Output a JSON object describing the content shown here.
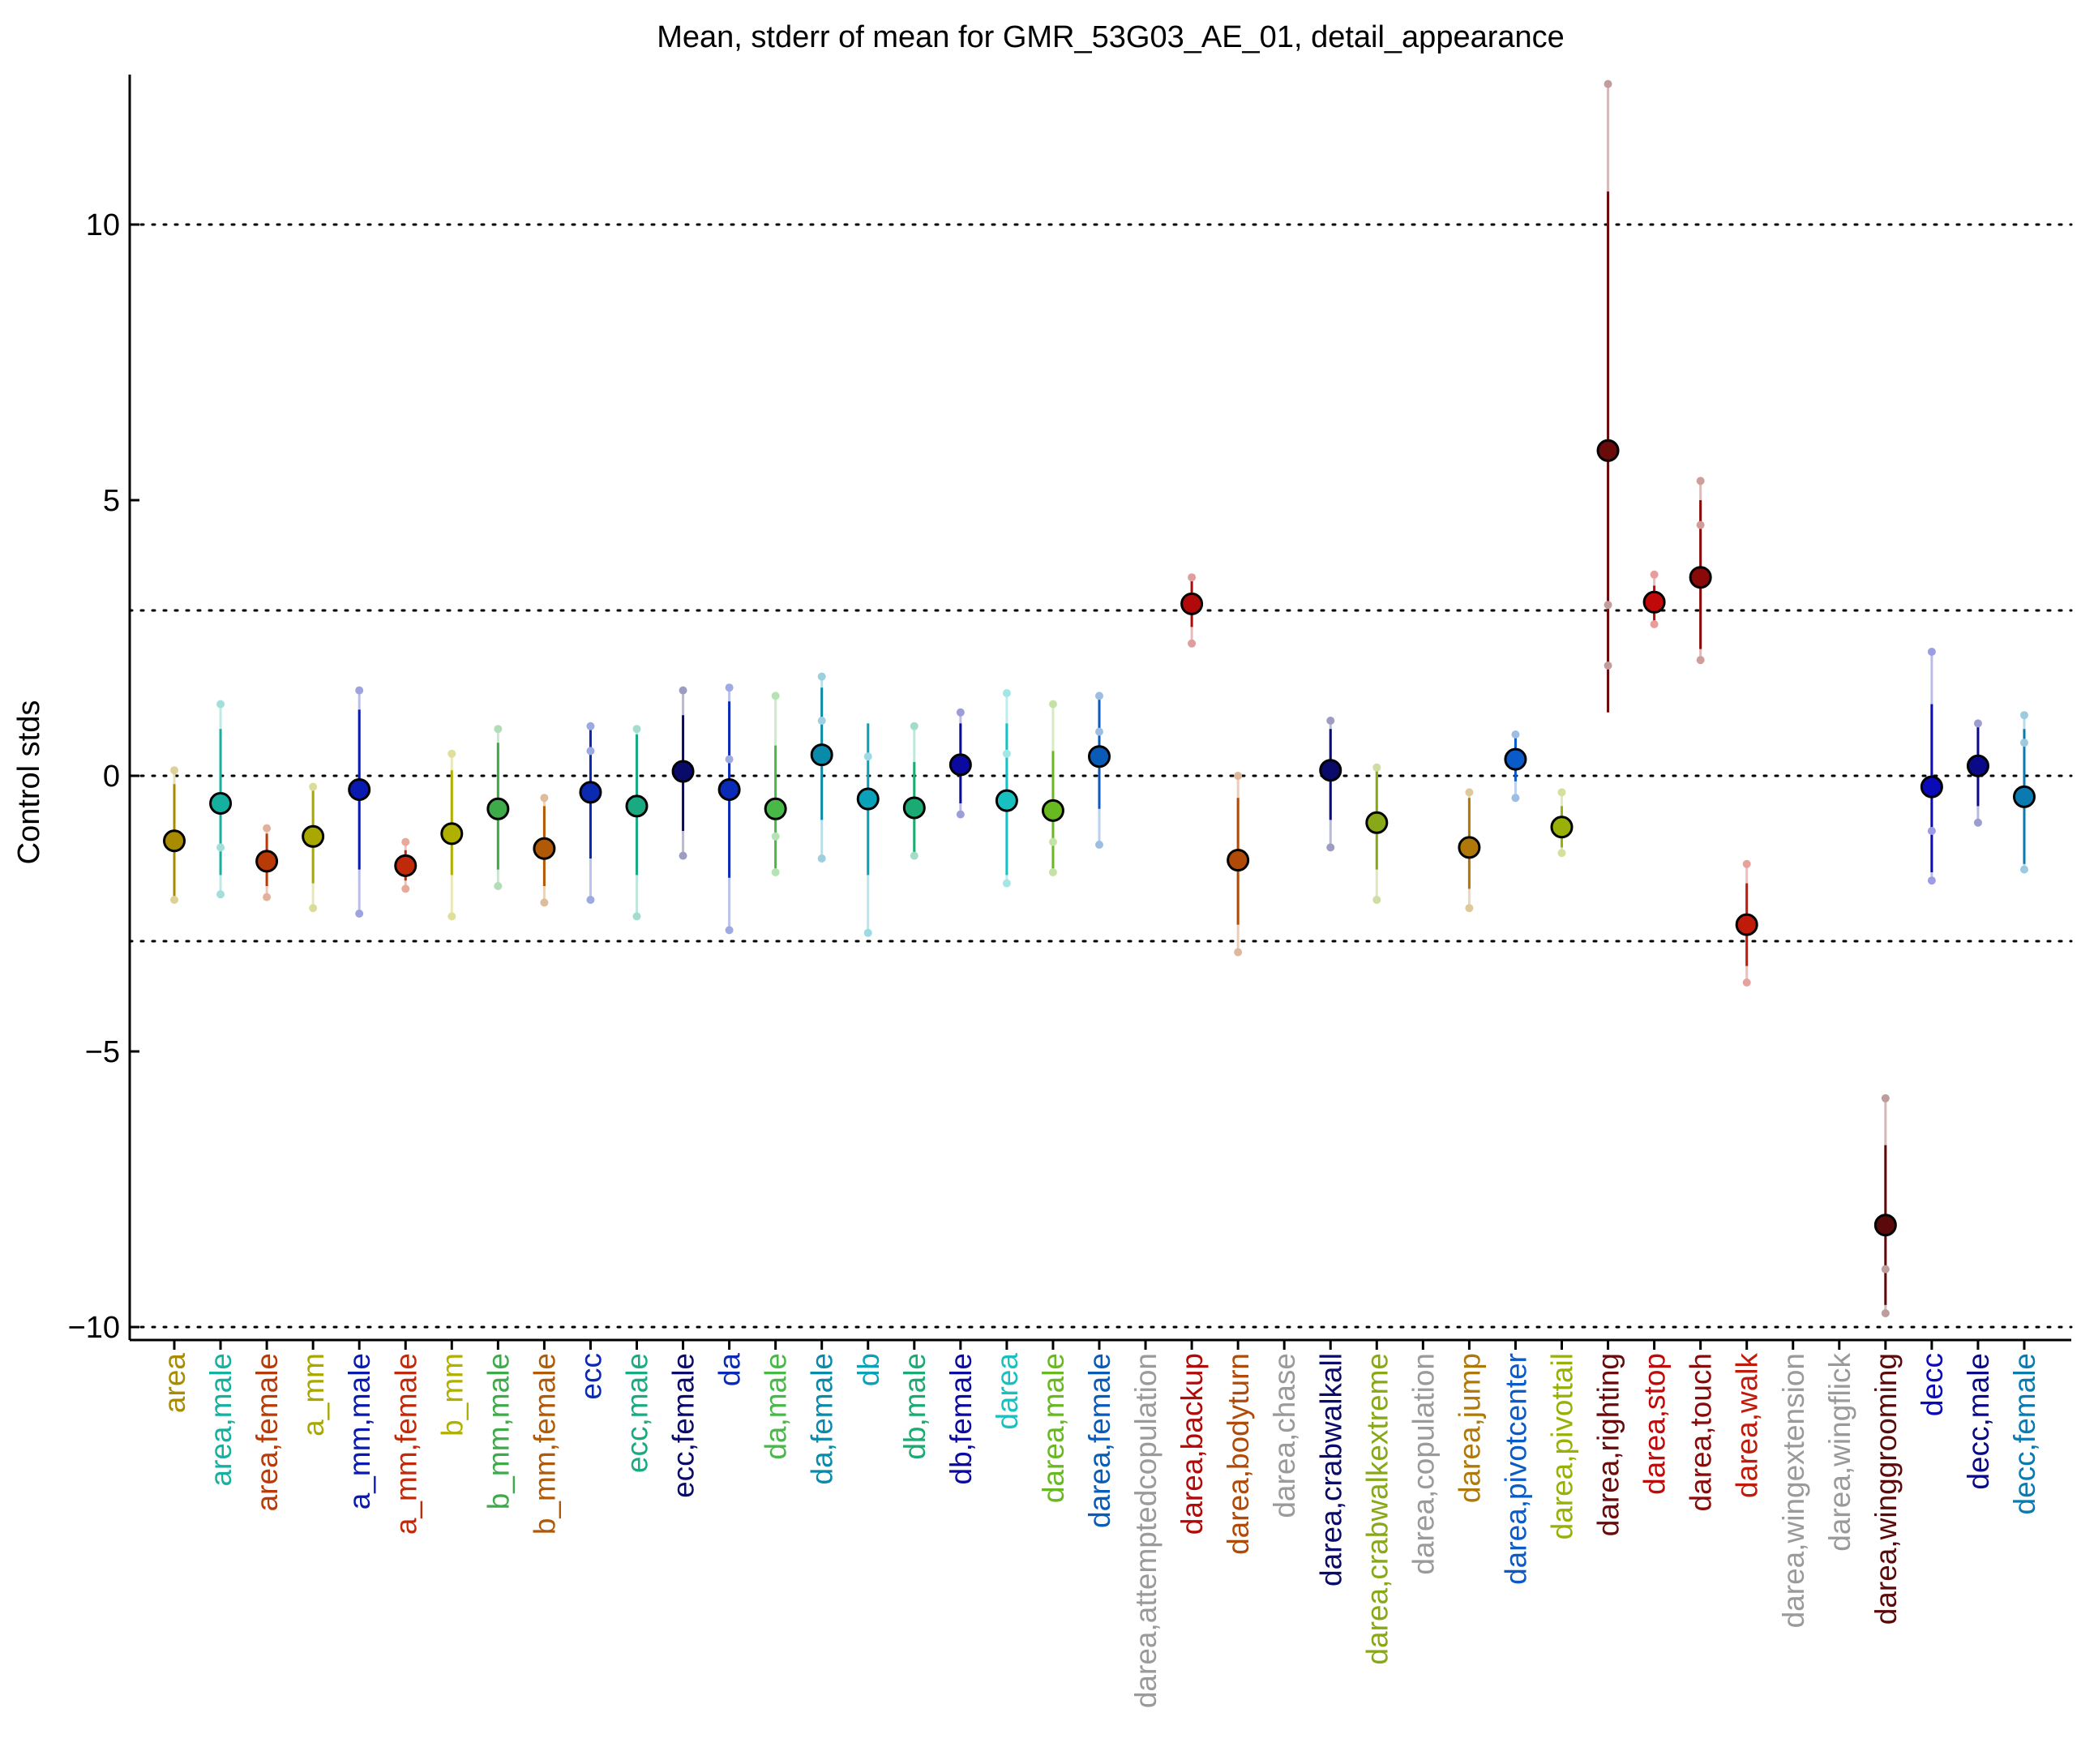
{
  "chart_data": {
    "type": "scatter",
    "title": "Mean, stderr of mean for GMR_53G03_AE_01, detail_appearance",
    "xlabel": "",
    "ylabel": "Control stds",
    "ylim": [
      -10.3,
      12.7
    ],
    "yticks": [
      -10,
      -5,
      0,
      5,
      10
    ],
    "ytick_labels": [
      "−10",
      "−5",
      "0",
      "5",
      "10"
    ],
    "reference_lines": [
      -10,
      -3,
      0,
      3,
      10
    ],
    "grid": false,
    "legend": "none",
    "categories": [
      {
        "label": "area",
        "color": "#a98b00",
        "mean": -1.18,
        "se_low": -2.2,
        "se_high": -0.15,
        "raw": [
          -2.25,
          0.1
        ]
      },
      {
        "label": "area,male",
        "color": "#16b0a0",
        "mean": -0.5,
        "se_low": -1.8,
        "se_high": 0.85,
        "raw": [
          -2.15,
          -1.3,
          1.3
        ]
      },
      {
        "label": "area,female",
        "color": "#b83a08",
        "mean": -1.55,
        "se_low": -2.0,
        "se_high": -1.05,
        "raw": [
          -2.2,
          -0.95
        ]
      },
      {
        "label": "a_mm",
        "color": "#a8a800",
        "mean": -1.1,
        "se_low": -1.95,
        "se_high": -0.25,
        "raw": [
          -2.4,
          -0.2
        ]
      },
      {
        "label": "a_mm,male",
        "color": "#0a1ab0",
        "mean": -0.25,
        "se_low": -1.7,
        "se_high": 1.2,
        "raw": [
          -2.5,
          1.55
        ]
      },
      {
        "label": "a_mm,female",
        "color": "#c02a0a",
        "mean": -1.63,
        "se_low": -1.9,
        "se_high": -1.35,
        "raw": [
          -2.05,
          -1.2
        ]
      },
      {
        "label": "b_mm",
        "color": "#b0b000",
        "mean": -1.05,
        "se_low": -1.8,
        "se_high": 0.1,
        "raw": [
          -2.55,
          0.4
        ]
      },
      {
        "label": "b_mm,male",
        "color": "#3eaa4a",
        "mean": -0.6,
        "se_low": -1.7,
        "se_high": 0.6,
        "raw": [
          -2.0,
          0.85
        ]
      },
      {
        "label": "b_mm,female",
        "color": "#b05a08",
        "mean": -1.32,
        "se_low": -2.0,
        "se_high": -0.55,
        "raw": [
          -2.3,
          -0.4
        ]
      },
      {
        "label": "ecc",
        "color": "#0a2ab0",
        "mean": -0.3,
        "se_low": -1.5,
        "se_high": 0.9,
        "raw": [
          -2.25,
          0.45,
          0.9
        ]
      },
      {
        "label": "ecc,male",
        "color": "#1aaa82",
        "mean": -0.55,
        "se_low": -1.8,
        "se_high": 0.75,
        "raw": [
          -2.55,
          0.85
        ]
      },
      {
        "label": "ecc,female",
        "color": "#0a0a6a",
        "mean": 0.08,
        "se_low": -1.0,
        "se_high": 1.1,
        "raw": [
          -1.45,
          1.55
        ]
      },
      {
        "label": "da",
        "color": "#0a2ab8",
        "mean": -0.25,
        "se_low": -1.85,
        "se_high": 1.35,
        "raw": [
          -2.8,
          0.3,
          1.6
        ]
      },
      {
        "label": "da,male",
        "color": "#48b848",
        "mean": -0.6,
        "se_low": -1.7,
        "se_high": 0.55,
        "raw": [
          -1.75,
          -1.1,
          1.45
        ]
      },
      {
        "label": "da,female",
        "color": "#0a8aaa",
        "mean": 0.38,
        "se_low": -0.8,
        "se_high": 1.6,
        "raw": [
          -1.5,
          1.0,
          1.8
        ]
      },
      {
        "label": "db",
        "color": "#0aa2b8",
        "mean": -0.42,
        "se_low": -1.8,
        "se_high": 0.95,
        "raw": [
          -2.85,
          0.35
        ]
      },
      {
        "label": "db,male",
        "color": "#1aaa72",
        "mean": -0.58,
        "se_low": -1.4,
        "se_high": 0.25,
        "raw": [
          -1.45,
          0.9
        ]
      },
      {
        "label": "db,female",
        "color": "#0a0aa0",
        "mean": 0.2,
        "se_low": -0.5,
        "se_high": 0.95,
        "raw": [
          -0.7,
          1.15
        ]
      },
      {
        "label": "darea",
        "color": "#18c0c0",
        "mean": -0.45,
        "se_low": -1.8,
        "se_high": 0.95,
        "raw": [
          -1.95,
          0.4,
          1.5
        ]
      },
      {
        "label": "darea,male",
        "color": "#68b820",
        "mean": -0.63,
        "se_low": -1.7,
        "se_high": 0.45,
        "raw": [
          -1.75,
          -1.2,
          1.3
        ]
      },
      {
        "label": "darea,female",
        "color": "#0a5ab8",
        "mean": 0.35,
        "se_low": -0.6,
        "se_high": 1.4,
        "raw": [
          -1.25,
          0.8,
          1.45
        ]
      },
      {
        "label": "darea,attemptedcopulation",
        "color": "#9a9a9a",
        "mean": null,
        "se_low": null,
        "se_high": null,
        "raw": []
      },
      {
        "label": "darea,backup",
        "color": "#b00a0a",
        "mean": 3.12,
        "se_low": 2.7,
        "se_high": 3.55,
        "raw": [
          2.4,
          3.6
        ]
      },
      {
        "label": "darea,bodyturn",
        "color": "#b04a08",
        "mean": -1.53,
        "se_low": -2.7,
        "se_high": -0.4,
        "raw": [
          -3.2,
          0.0
        ]
      },
      {
        "label": "darea,chase",
        "color": "#9a9a9a",
        "mean": null,
        "se_low": null,
        "se_high": null,
        "raw": []
      },
      {
        "label": "darea,crabwalkall",
        "color": "#0a0a6a",
        "mean": 0.1,
        "se_low": -0.8,
        "se_high": 0.85,
        "raw": [
          -1.3,
          1.0
        ]
      },
      {
        "label": "darea,crabwalkextreme",
        "color": "#88a818",
        "mean": -0.85,
        "se_low": -1.7,
        "se_high": 0.1,
        "raw": [
          -2.25,
          0.15
        ]
      },
      {
        "label": "darea,copulation",
        "color": "#9a9a9a",
        "mean": null,
        "se_low": null,
        "se_high": null,
        "raw": []
      },
      {
        "label": "darea,jump",
        "color": "#b07808",
        "mean": -1.3,
        "se_low": -2.05,
        "se_high": -0.4,
        "raw": [
          -2.4,
          -0.3
        ]
      },
      {
        "label": "darea,pivotcenter",
        "color": "#0a5ac8",
        "mean": 0.3,
        "se_low": -0.1,
        "se_high": 0.75,
        "raw": [
          -0.4,
          0.75
        ]
      },
      {
        "label": "darea,pivottail",
        "color": "#98b008",
        "mean": -0.93,
        "se_low": -1.3,
        "se_high": -0.55,
        "raw": [
          -1.4,
          -0.3
        ]
      },
      {
        "label": "darea,righting",
        "color": "#6a0a0a",
        "mean": 5.9,
        "se_low": 1.15,
        "se_high": 10.6,
        "raw": [
          2.0,
          3.1,
          12.55
        ]
      },
      {
        "label": "darea,stop",
        "color": "#c00a0a",
        "mean": 3.15,
        "se_low": 2.8,
        "se_high": 3.45,
        "raw": [
          2.75,
          3.65
        ]
      },
      {
        "label": "darea,touch",
        "color": "#8a0a0a",
        "mean": 3.6,
        "se_low": 2.3,
        "se_high": 5.0,
        "raw": [
          2.1,
          4.55,
          5.35
        ]
      },
      {
        "label": "darea,walk",
        "color": "#c01a0a",
        "mean": -2.7,
        "se_low": -3.45,
        "se_high": -1.95,
        "raw": [
          -3.75,
          -1.6
        ]
      },
      {
        "label": "darea,wingextension",
        "color": "#9a9a9a",
        "mean": null,
        "se_low": null,
        "se_high": null,
        "raw": []
      },
      {
        "label": "darea,wingflick",
        "color": "#9a9a9a",
        "mean": null,
        "se_low": null,
        "se_high": null,
        "raw": []
      },
      {
        "label": "darea,winggrooming",
        "color": "#5a0a0a",
        "mean": -8.15,
        "se_low": -9.6,
        "se_high": -6.7,
        "raw": [
          -9.75,
          -8.95,
          -5.85
        ]
      },
      {
        "label": "decc",
        "color": "#0a0ab8",
        "mean": -0.2,
        "se_low": -1.75,
        "se_high": 1.3,
        "raw": [
          -1.9,
          -1.0,
          2.25
        ]
      },
      {
        "label": "decc,male",
        "color": "#0a0a88",
        "mean": 0.18,
        "se_low": -0.55,
        "se_high": 0.9,
        "raw": [
          -0.85,
          0.95
        ]
      },
      {
        "label": "decc,female",
        "color": "#0a7ab0",
        "mean": -0.38,
        "se_low": -1.6,
        "se_high": 0.85,
        "raw": [
          -1.7,
          0.6,
          1.1
        ]
      }
    ]
  }
}
